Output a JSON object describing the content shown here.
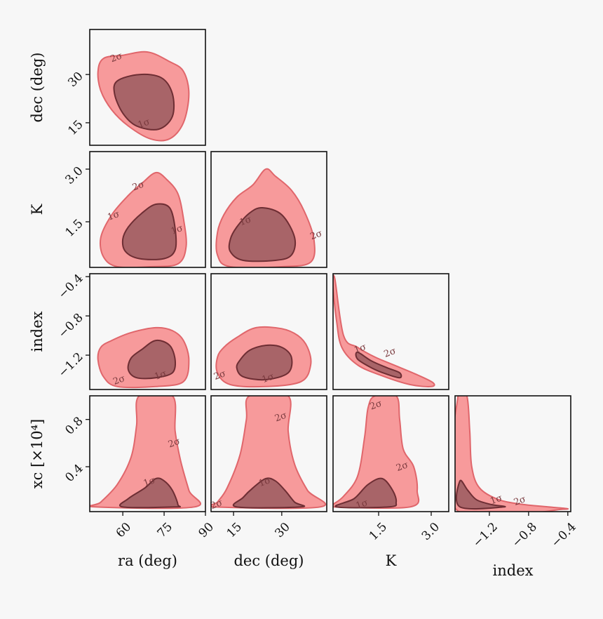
{
  "chart_data": {
    "type": "corner",
    "colors": {
      "outer_fill": "#f79a9b",
      "outer_stroke": "#e0666b",
      "inner_fill": "#a86468",
      "inner_stroke": "#6e2e34",
      "frame": "#111111",
      "background": "#f7f7f7"
    },
    "contour_levels": [
      "1σ",
      "2σ"
    ],
    "parameters": [
      {
        "key": "ra",
        "label": "ra (deg)",
        "range": [
          48,
          90
        ],
        "ticks": [
          {
            "v": 60,
            "label": "60"
          },
          {
            "v": 75,
            "label": "75"
          },
          {
            "v": 90,
            "label": "90"
          }
        ]
      },
      {
        "key": "dec",
        "label": "dec (deg)",
        "range": [
          8,
          44
        ],
        "ticks": [
          {
            "v": 15,
            "label": "15"
          },
          {
            "v": 30,
            "label": "30"
          }
        ]
      },
      {
        "key": "K",
        "label": "K",
        "range": [
          0.2,
          3.5
        ],
        "ticks": [
          {
            "v": 1.5,
            "label": "1.5"
          },
          {
            "v": 3.0,
            "label": "3.0"
          }
        ]
      },
      {
        "key": "index",
        "label": "index",
        "range": [
          -1.55,
          -0.37
        ],
        "ticks": [
          {
            "v": -1.2,
            "label": "−1.2"
          },
          {
            "v": -0.8,
            "label": "−0.8"
          },
          {
            "v": -0.4,
            "label": "−0.4"
          }
        ]
      },
      {
        "key": "xc",
        "label": "xc [×10⁴]",
        "range": [
          0.02,
          1.0
        ],
        "ticks": [
          {
            "v": 0.4,
            "label": "0.4"
          },
          {
            "v": 0.8,
            "label": "0.8"
          }
        ]
      }
    ],
    "panels": [
      {
        "x": "ra",
        "y": "dec",
        "inner": [
          [
            58,
            28
          ],
          [
            66,
            30
          ],
          [
            74,
            29
          ],
          [
            78,
            24
          ],
          [
            78,
            17
          ],
          [
            73,
            13
          ],
          [
            65,
            14
          ],
          [
            60,
            18
          ],
          [
            57,
            24
          ]
        ],
        "outer": [
          [
            53,
            35
          ],
          [
            60,
            36
          ],
          [
            69,
            37
          ],
          [
            77,
            34
          ],
          [
            82,
            31
          ],
          [
            84,
            24
          ],
          [
            82,
            15
          ],
          [
            77,
            10
          ],
          [
            70,
            10
          ],
          [
            62,
            14
          ],
          [
            56,
            19
          ],
          [
            52,
            25
          ],
          [
            51,
            31
          ]
        ],
        "sigma_labels": [
          {
            "text": "2σ",
            "x": 58,
            "y": 34.5
          },
          {
            "text": "1σ",
            "x": 68,
            "y": 14
          }
        ]
      },
      {
        "x": "ra",
        "y": "K",
        "inner": [
          [
            62,
            1.35
          ],
          [
            67,
            1.75
          ],
          [
            72,
            2.0
          ],
          [
            77,
            1.9
          ],
          [
            79,
            1.3
          ],
          [
            79,
            0.7
          ],
          [
            75,
            0.45
          ],
          [
            66,
            0.45
          ],
          [
            61,
            0.65
          ],
          [
            60,
            1.0
          ]
        ],
        "outer": [
          [
            56,
            1.7
          ],
          [
            62,
            2.25
          ],
          [
            67,
            2.6
          ],
          [
            72,
            2.9
          ],
          [
            76,
            2.7
          ],
          [
            80,
            2.3
          ],
          [
            82,
            1.6
          ],
          [
            83,
            0.8
          ],
          [
            80,
            0.3
          ],
          [
            70,
            0.22
          ],
          [
            58,
            0.22
          ],
          [
            53,
            0.5
          ],
          [
            52,
            1.05
          ]
        ],
        "sigma_labels": [
          {
            "text": "2σ",
            "x": 66,
            "y": 2.45
          },
          {
            "text": "1σ",
            "x": 57,
            "y": 1.6
          },
          {
            "text": "1σ",
            "x": 80,
            "y": 1.2
          }
        ]
      },
      {
        "x": "dec",
        "y": "K",
        "inner": [
          [
            16,
            1.35
          ],
          [
            20,
            1.75
          ],
          [
            24,
            1.9
          ],
          [
            30,
            1.7
          ],
          [
            34,
            1.05
          ],
          [
            33,
            0.55
          ],
          [
            28,
            0.4
          ],
          [
            18,
            0.4
          ],
          [
            14,
            0.65
          ],
          [
            14,
            1.0
          ]
        ],
        "outer": [
          [
            12,
            1.7
          ],
          [
            16,
            2.2
          ],
          [
            21,
            2.55
          ],
          [
            25,
            3.0
          ],
          [
            28,
            2.8
          ],
          [
            33,
            2.4
          ],
          [
            37,
            1.8
          ],
          [
            40,
            1.0
          ],
          [
            39,
            0.35
          ],
          [
            30,
            0.22
          ],
          [
            14,
            0.22
          ],
          [
            10,
            0.55
          ],
          [
            10,
            1.2
          ]
        ],
        "sigma_labels": [
          {
            "text": "1σ",
            "x": 19,
            "y": 1.45
          },
          {
            "text": "2σ",
            "x": 41,
            "y": 1.05
          }
        ]
      },
      {
        "x": "ra",
        "y": "index",
        "inner": [
          [
            63,
            -1.23
          ],
          [
            67,
            -1.14
          ],
          [
            72,
            -1.05
          ],
          [
            77,
            -1.1
          ],
          [
            79,
            -1.25
          ],
          [
            78,
            -1.38
          ],
          [
            72,
            -1.43
          ],
          [
            65,
            -1.43
          ],
          [
            62,
            -1.35
          ]
        ],
        "outer": [
          [
            56,
            -1.05
          ],
          [
            63,
            -0.97
          ],
          [
            72,
            -0.92
          ],
          [
            78,
            -0.95
          ],
          [
            82,
            -1.05
          ],
          [
            84,
            -1.25
          ],
          [
            82,
            -1.47
          ],
          [
            72,
            -1.52
          ],
          [
            58,
            -1.52
          ],
          [
            53,
            -1.42
          ],
          [
            51,
            -1.25
          ],
          [
            52,
            -1.12
          ]
        ],
        "sigma_labels": [
          {
            "text": "2σ",
            "x": 59,
            "y": -1.48
          },
          {
            "text": "1σ",
            "x": 74,
            "y": -1.43
          }
        ]
      },
      {
        "x": "dec",
        "y": "index",
        "inner": [
          [
            17,
            -1.25
          ],
          [
            20,
            -1.15
          ],
          [
            25,
            -1.1
          ],
          [
            30,
            -1.12
          ],
          [
            33,
            -1.22
          ],
          [
            32,
            -1.38
          ],
          [
            25,
            -1.45
          ],
          [
            18,
            -1.42
          ],
          [
            16,
            -1.33
          ]
        ],
        "outer": [
          [
            12,
            -1.12
          ],
          [
            16,
            -1.02
          ],
          [
            22,
            -0.92
          ],
          [
            30,
            -0.93
          ],
          [
            35,
            -1.0
          ],
          [
            38,
            -1.12
          ],
          [
            39,
            -1.3
          ],
          [
            36,
            -1.47
          ],
          [
            25,
            -1.52
          ],
          [
            14,
            -1.5
          ],
          [
            10,
            -1.38
          ],
          [
            10,
            -1.22
          ]
        ],
        "sigma_labels": [
          {
            "text": "2σ",
            "x": 11,
            "y": -1.43
          },
          {
            "text": "1σ",
            "x": 26,
            "y": -1.46
          }
        ]
      },
      {
        "x": "K",
        "y": "index",
        "inner": [
          [
            0.9,
            -1.17
          ],
          [
            1.3,
            -1.26
          ],
          [
            1.75,
            -1.33
          ],
          [
            2.1,
            -1.38
          ],
          [
            2.1,
            -1.43
          ],
          [
            1.7,
            -1.39
          ],
          [
            1.3,
            -1.33
          ],
          [
            0.9,
            -1.24
          ]
        ],
        "outer": [
          [
            0.25,
            -0.42
          ],
          [
            0.5,
            -1.0
          ],
          [
            0.9,
            -1.12
          ],
          [
            1.4,
            -1.22
          ],
          [
            2.0,
            -1.31
          ],
          [
            2.6,
            -1.4
          ],
          [
            3.05,
            -1.48
          ],
          [
            3.0,
            -1.52
          ],
          [
            2.4,
            -1.5
          ],
          [
            1.6,
            -1.41
          ],
          [
            0.9,
            -1.3
          ],
          [
            0.45,
            -1.12
          ],
          [
            0.3,
            -0.85
          ],
          [
            0.2,
            -0.5
          ]
        ],
        "sigma_labels": [
          {
            "text": "1σ",
            "x": 1.0,
            "y": -1.16
          },
          {
            "text": "2σ",
            "x": 1.85,
            "y": -1.2
          }
        ]
      },
      {
        "x": "ra",
        "y": "xc",
        "inner": [
          [
            60,
            0.06
          ],
          [
            62,
            0.13
          ],
          [
            68,
            0.22
          ],
          [
            72,
            0.3
          ],
          [
            75,
            0.28
          ],
          [
            78,
            0.2
          ],
          [
            80,
            0.08
          ],
          [
            79,
            0.06
          ]
        ],
        "outer": [
          [
            52,
            0.1
          ],
          [
            58,
            0.25
          ],
          [
            63,
            0.48
          ],
          [
            65,
            0.75
          ],
          [
            66,
            1.0
          ],
          [
            78,
            1.0
          ],
          [
            79,
            0.7
          ],
          [
            81,
            0.45
          ],
          [
            84,
            0.2
          ],
          [
            86,
            0.06
          ],
          [
            50,
            0.06
          ]
        ],
        "sigma_labels": [
          {
            "text": "1σ",
            "x": 70,
            "y": 0.25
          },
          {
            "text": "2σ",
            "x": 79,
            "y": 0.58
          }
        ]
      },
      {
        "x": "dec",
        "y": "xc",
        "inner": [
          [
            16,
            0.06
          ],
          [
            18,
            0.14
          ],
          [
            21,
            0.22
          ],
          [
            25,
            0.3
          ],
          [
            28,
            0.28
          ],
          [
            31,
            0.2
          ],
          [
            34,
            0.1
          ],
          [
            36,
            0.06
          ]
        ],
        "outer": [
          [
            10,
            0.1
          ],
          [
            13,
            0.22
          ],
          [
            17,
            0.5
          ],
          [
            19,
            0.8
          ],
          [
            20,
            1.0
          ],
          [
            32,
            1.0
          ],
          [
            32,
            0.7
          ],
          [
            34,
            0.42
          ],
          [
            38,
            0.2
          ],
          [
            42,
            0.06
          ],
          [
            9,
            0.06
          ]
        ],
        "sigma_labels": [
          {
            "text": "1σ",
            "x": 25,
            "y": 0.25
          },
          {
            "text": "2σ",
            "x": 30,
            "y": 0.8
          },
          {
            "text": "2σ",
            "x": 10,
            "y": 0.06
          }
        ]
      },
      {
        "x": "K",
        "y": "xc",
        "inner": [
          [
            0.3,
            0.06
          ],
          [
            0.8,
            0.13
          ],
          [
            1.2,
            0.25
          ],
          [
            1.6,
            0.3
          ],
          [
            1.9,
            0.2
          ],
          [
            2.0,
            0.1
          ],
          [
            1.8,
            0.06
          ]
        ],
        "outer": [
          [
            0.2,
            0.08
          ],
          [
            0.5,
            0.15
          ],
          [
            0.9,
            0.32
          ],
          [
            1.1,
            0.65
          ],
          [
            1.2,
            0.9
          ],
          [
            1.4,
            1.0
          ],
          [
            2.0,
            1.0
          ],
          [
            2.1,
            0.8
          ],
          [
            2.2,
            0.55
          ],
          [
            2.5,
            0.4
          ],
          [
            2.6,
            0.2
          ],
          [
            2.4,
            0.06
          ],
          [
            0.2,
            0.06
          ]
        ],
        "sigma_labels": [
          {
            "text": "1σ",
            "x": 1.05,
            "y": 0.06
          },
          {
            "text": "2σ",
            "x": 2.2,
            "y": 0.38
          },
          {
            "text": "2σ",
            "x": 1.45,
            "y": 0.9
          }
        ]
      },
      {
        "x": "index",
        "y": "xc",
        "inner": [
          [
            -1.5,
            0.28
          ],
          [
            -1.42,
            0.2
          ],
          [
            -1.33,
            0.12
          ],
          [
            -1.18,
            0.08
          ],
          [
            -1.05,
            0.06
          ],
          [
            -1.5,
            0.06
          ]
        ],
        "outer": [
          [
            -1.52,
            1.0
          ],
          [
            -1.43,
            1.0
          ],
          [
            -1.4,
            0.7
          ],
          [
            -1.38,
            0.4
          ],
          [
            -1.3,
            0.22
          ],
          [
            -1.1,
            0.12
          ],
          [
            -0.85,
            0.08
          ],
          [
            -0.6,
            0.06
          ],
          [
            -0.45,
            0.04
          ],
          [
            -1.54,
            0.04
          ]
        ],
        "sigma_labels": [
          {
            "text": "1σ",
            "x": -1.12,
            "y": 0.1
          },
          {
            "text": "2σ",
            "x": -0.88,
            "y": 0.09
          }
        ]
      }
    ]
  }
}
